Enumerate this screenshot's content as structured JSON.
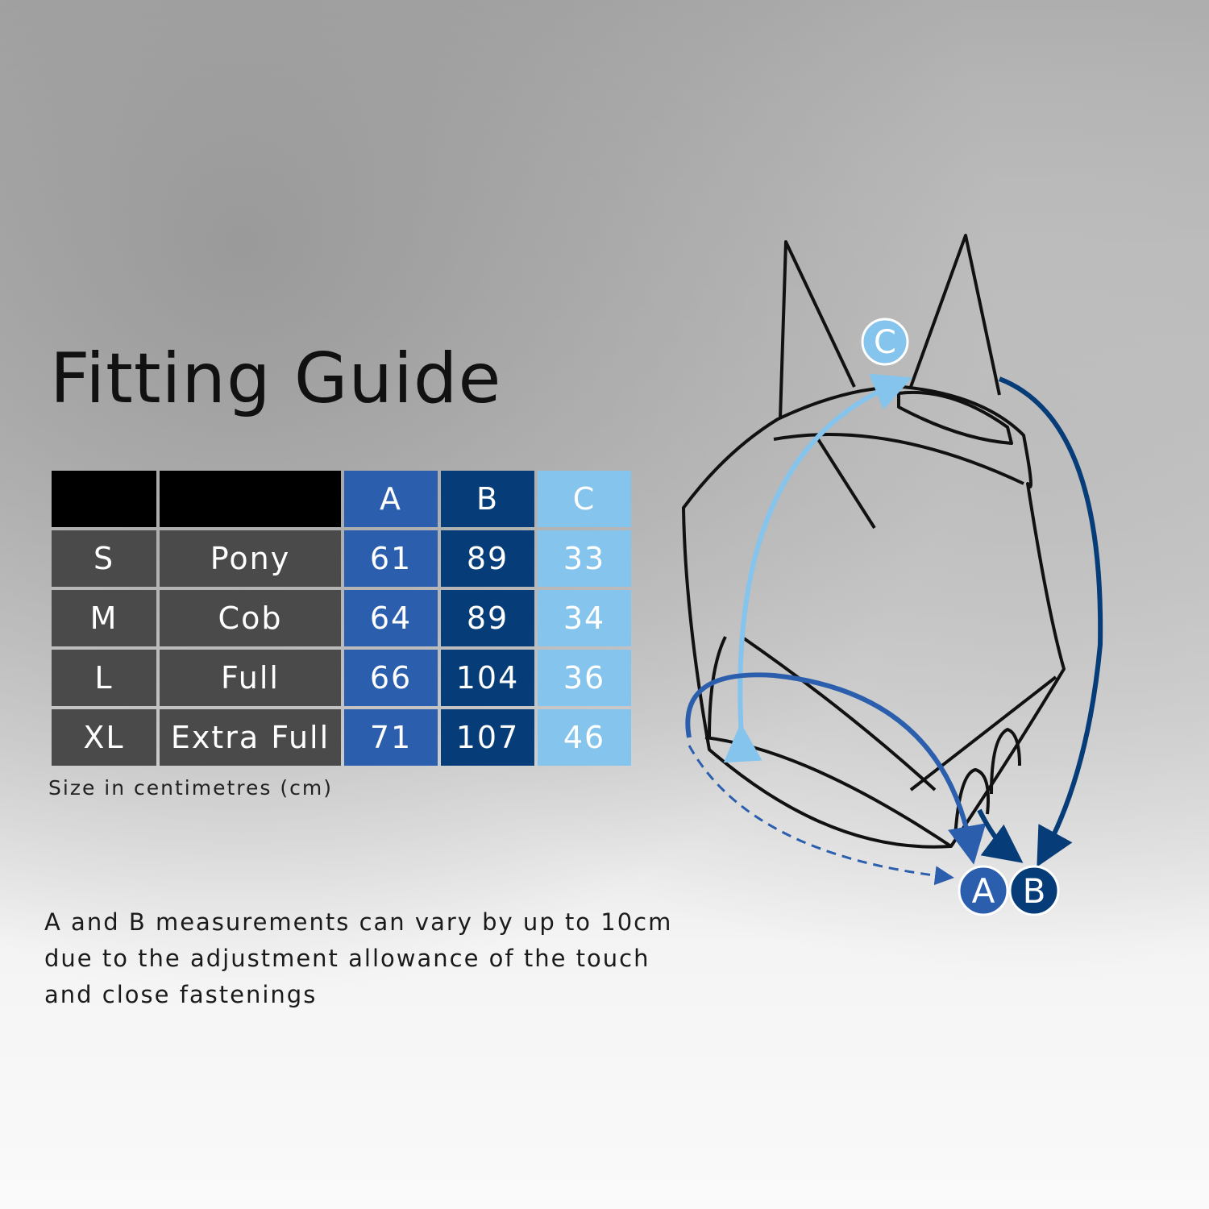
{
  "title": "Fitting Guide",
  "table": {
    "headers": [
      "",
      "",
      "A",
      "B",
      "C"
    ],
    "rows": [
      {
        "size": "S",
        "type": "Pony",
        "a": "61",
        "b": "89",
        "c": "33"
      },
      {
        "size": "M",
        "type": "Cob",
        "a": "64",
        "b": "89",
        "c": "34"
      },
      {
        "size": "L",
        "type": "Full",
        "a": "66",
        "b": "104",
        "c": "36"
      },
      {
        "size": "XL",
        "type": "Extra Full",
        "a": "71",
        "b": "107",
        "c": "46"
      }
    ]
  },
  "unit_note": "Size in centimetres (cm)",
  "disclaimer": "A and B measurements can vary by up to 10cm due to the adjustment allowance of the touch and close fastenings",
  "diagram": {
    "label_a": "A",
    "label_b": "B",
    "label_c": "C"
  },
  "colors": {
    "a": "#2b5fad",
    "b": "#063d78",
    "c": "#85c4ec",
    "row": "#4a4a4a",
    "header": "#000000"
  }
}
